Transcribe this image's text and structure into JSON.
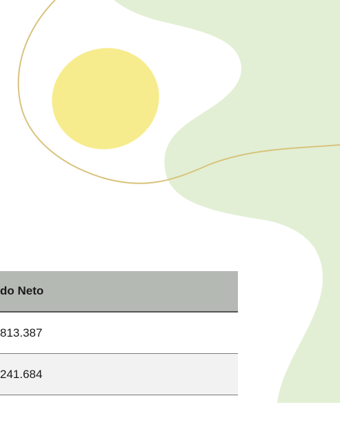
{
  "table": {
    "header": [
      "do Neto"
    ],
    "rows": [
      [
        "813.387"
      ],
      [
        "241.684"
      ]
    ]
  }
}
